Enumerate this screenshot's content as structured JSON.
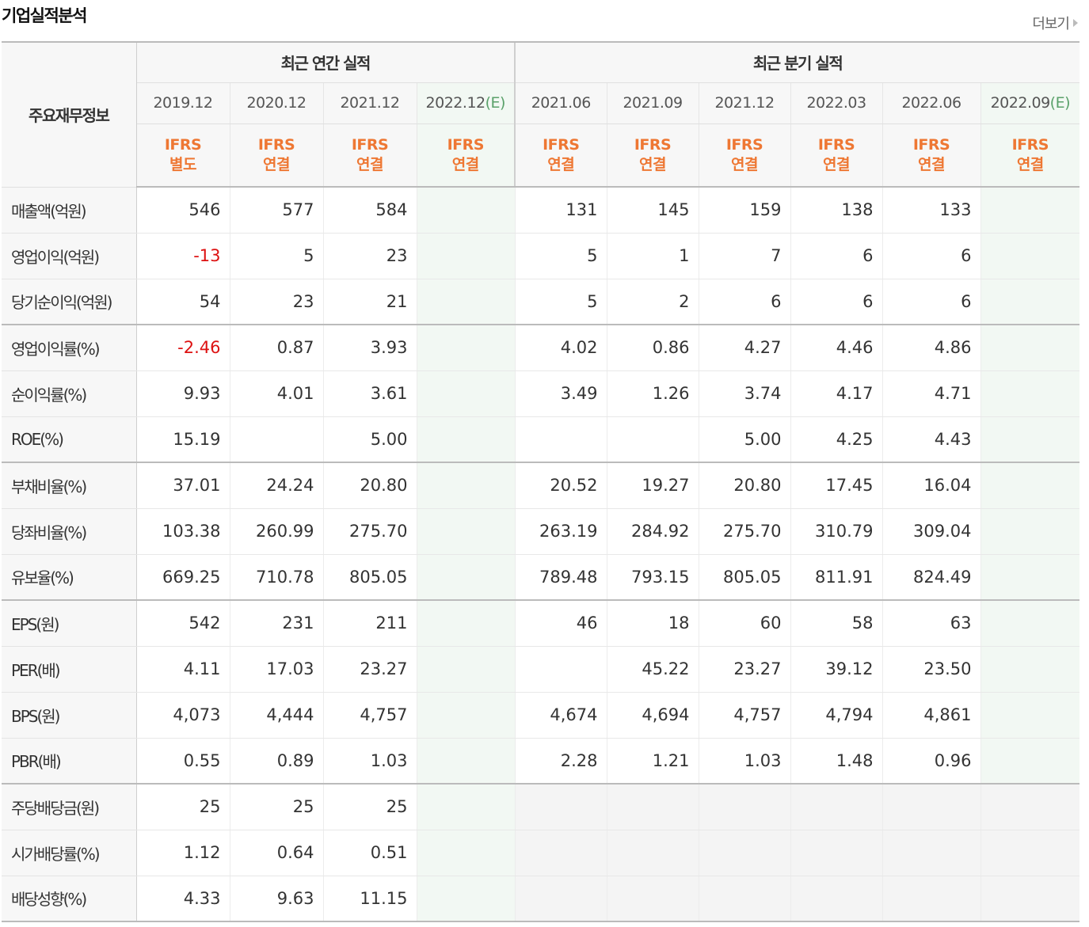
{
  "title": "기업실적분석",
  "more_label": "더보기",
  "header": {
    "label": "주요재무정보",
    "annual_group": "최근 연간 실적",
    "quarter_group": "최근 분기 실적",
    "periods": [
      {
        "date": "2019.12",
        "est": "",
        "std1": "IFRS",
        "std2": "별도"
      },
      {
        "date": "2020.12",
        "est": "",
        "std1": "IFRS",
        "std2": "연결"
      },
      {
        "date": "2021.12",
        "est": "",
        "std1": "IFRS",
        "std2": "연결"
      },
      {
        "date": "2022.12",
        "est": "(E)",
        "std1": "IFRS",
        "std2": "연결"
      },
      {
        "date": "2021.06",
        "est": "",
        "std1": "IFRS",
        "std2": "연결"
      },
      {
        "date": "2021.09",
        "est": "",
        "std1": "IFRS",
        "std2": "연결"
      },
      {
        "date": "2021.12",
        "est": "",
        "std1": "IFRS",
        "std2": "연결"
      },
      {
        "date": "2022.03",
        "est": "",
        "std1": "IFRS",
        "std2": "연결"
      },
      {
        "date": "2022.06",
        "est": "",
        "std1": "IFRS",
        "std2": "연결"
      },
      {
        "date": "2022.09",
        "est": "(E)",
        "std1": "IFRS",
        "std2": "연결"
      }
    ]
  },
  "rows": [
    {
      "label": "매출액(억원)",
      "values": [
        "546",
        "577",
        "584",
        "",
        "131",
        "145",
        "159",
        "138",
        "133",
        ""
      ]
    },
    {
      "label": "영업이익(억원)",
      "values": [
        "-13",
        "5",
        "23",
        "",
        "5",
        "1",
        "7",
        "6",
        "6",
        ""
      ]
    },
    {
      "label": "당기순이익(억원)",
      "values": [
        "54",
        "23",
        "21",
        "",
        "5",
        "2",
        "6",
        "6",
        "6",
        ""
      ]
    },
    {
      "label": "영업이익률(%)",
      "values": [
        "-2.46",
        "0.87",
        "3.93",
        "",
        "4.02",
        "0.86",
        "4.27",
        "4.46",
        "4.86",
        ""
      ]
    },
    {
      "label": "순이익률(%)",
      "values": [
        "9.93",
        "4.01",
        "3.61",
        "",
        "3.49",
        "1.26",
        "3.74",
        "4.17",
        "4.71",
        ""
      ]
    },
    {
      "label": "ROE(%)",
      "values": [
        "15.19",
        "",
        "5.00",
        "",
        "",
        "",
        "5.00",
        "4.25",
        "4.43",
        ""
      ]
    },
    {
      "label": "부채비율(%)",
      "values": [
        "37.01",
        "24.24",
        "20.80",
        "",
        "20.52",
        "19.27",
        "20.80",
        "17.45",
        "16.04",
        ""
      ]
    },
    {
      "label": "당좌비율(%)",
      "values": [
        "103.38",
        "260.99",
        "275.70",
        "",
        "263.19",
        "284.92",
        "275.70",
        "310.79",
        "309.04",
        ""
      ]
    },
    {
      "label": "유보율(%)",
      "values": [
        "669.25",
        "710.78",
        "805.05",
        "",
        "789.48",
        "793.15",
        "805.05",
        "811.91",
        "824.49",
        ""
      ]
    },
    {
      "label": "EPS(원)",
      "values": [
        "542",
        "231",
        "211",
        "",
        "46",
        "18",
        "60",
        "58",
        "63",
        ""
      ]
    },
    {
      "label": "PER(배)",
      "values": [
        "4.11",
        "17.03",
        "23.27",
        "",
        "",
        "45.22",
        "23.27",
        "39.12",
        "23.50",
        ""
      ]
    },
    {
      "label": "BPS(원)",
      "values": [
        "4,073",
        "4,444",
        "4,757",
        "",
        "4,674",
        "4,694",
        "4,757",
        "4,794",
        "4,861",
        ""
      ]
    },
    {
      "label": "PBR(배)",
      "values": [
        "0.55",
        "0.89",
        "1.03",
        "",
        "2.28",
        "1.21",
        "1.03",
        "1.48",
        "0.96",
        ""
      ]
    },
    {
      "label": "주당배당금(원)",
      "values": [
        "25",
        "25",
        "25",
        "",
        "",
        "",
        "",
        "",
        "",
        ""
      ]
    },
    {
      "label": "시가배당률(%)",
      "values": [
        "1.12",
        "0.64",
        "0.51",
        "",
        "",
        "",
        "",
        "",
        "",
        ""
      ]
    },
    {
      "label": "배당성향(%)",
      "values": [
        "4.33",
        "9.63",
        "11.15",
        "",
        "",
        "",
        "",
        "",
        "",
        ""
      ]
    }
  ]
}
